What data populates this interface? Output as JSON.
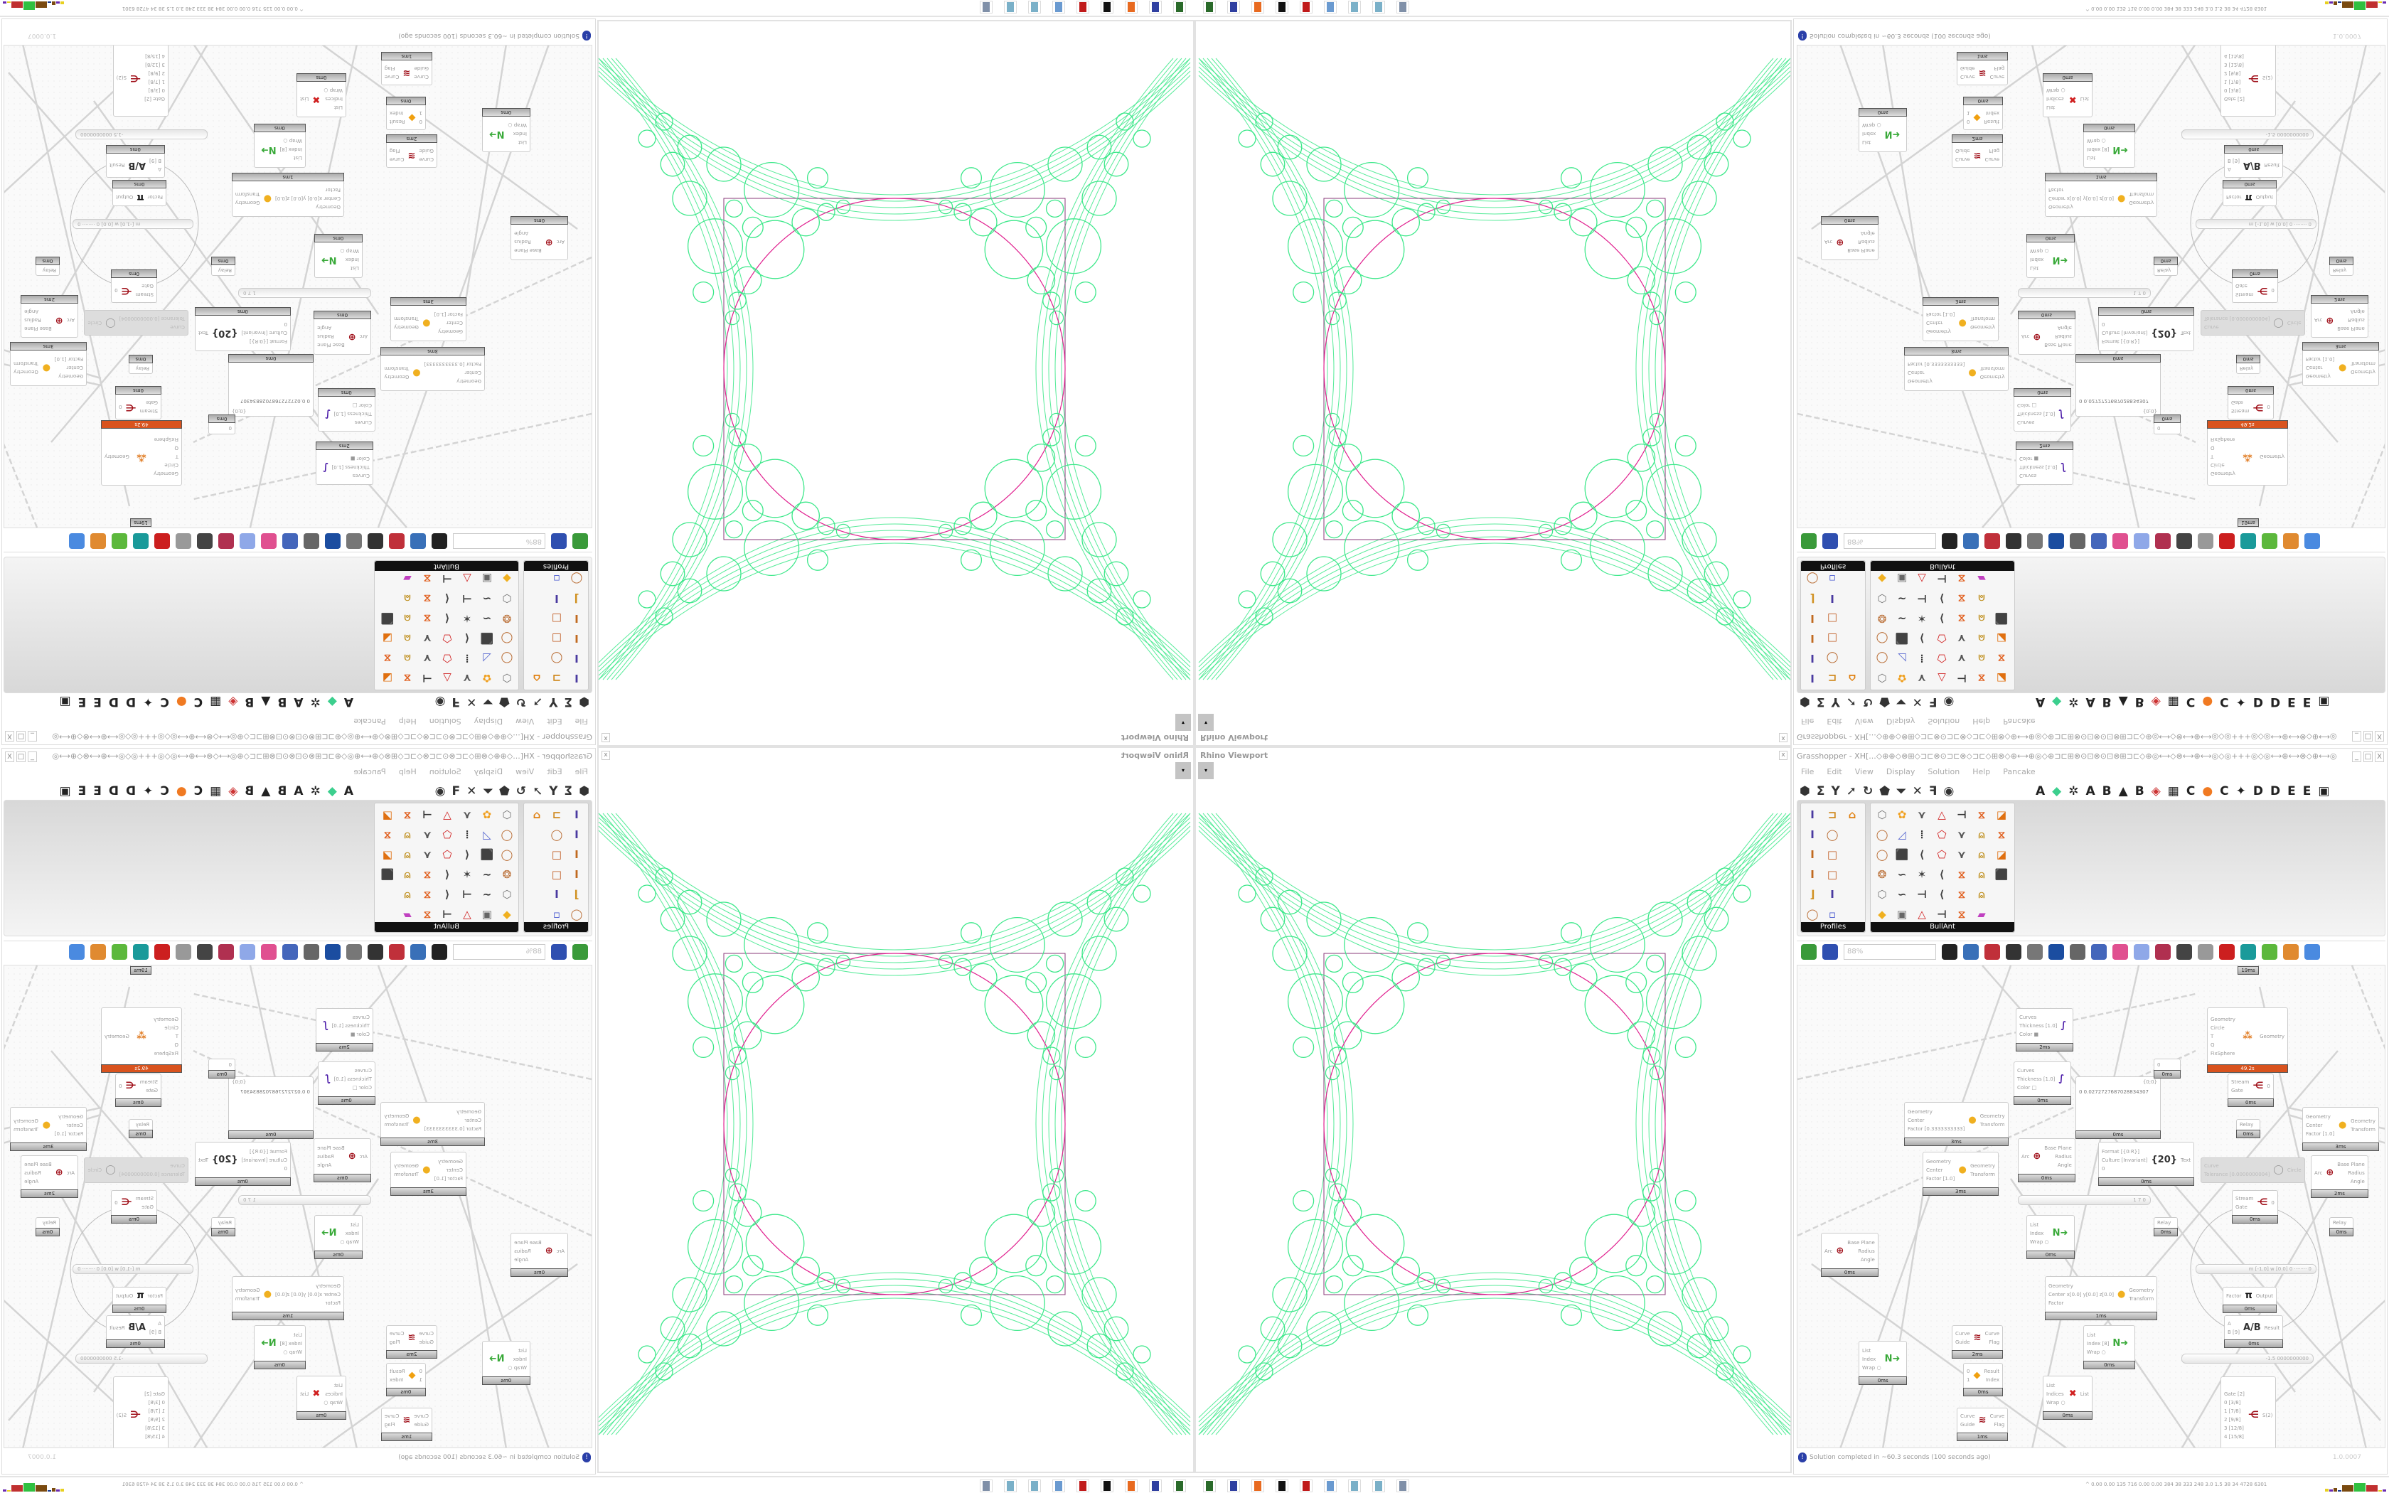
{
  "viewport": {
    "title": "Rhino Viewport",
    "close": "x",
    "dropdown": "▾",
    "curve_color": "#3de88a",
    "circle_color": "#e0208f"
  },
  "grasshopper": {
    "title": "Grasshopper - XH[...◇⊕⊕◇⊗⊞◇⊐⊏⊗⊙⊐⊏⊗◇⊐⊏◇⊞⊗◇⊕⟷⊕◎◇⊕⊐⊏⊞⊗⊙⊡⊗⊙⊡⊗⊞⊐⊏◇⊕◎⟷◇⊗⟷⊕⟷◎◇◎+++◎◇◎⟷⊕⟷⊗◇⊕⟷◎◇⊐⊏⊞⊗⊙⊡⊗...",
    "window_buttons": [
      "_",
      "□",
      "X"
    ],
    "menu": [
      "File",
      "Edit",
      "View",
      "Display",
      "Solution",
      "Help",
      "Pancake"
    ],
    "toolbar_left": [
      {
        "icon": "hexagon-icon",
        "glyph": "⬢"
      },
      {
        "icon": "sigma-icon",
        "glyph": "Σ"
      },
      {
        "icon": "y-branch-icon",
        "glyph": "Y"
      },
      {
        "icon": "arrow-icon",
        "glyph": "➚"
      },
      {
        "icon": "curl-icon",
        "glyph": "↻"
      },
      {
        "icon": "surface-icon",
        "glyph": "⬟"
      },
      {
        "icon": "funnel-icon",
        "glyph": "⏷"
      },
      {
        "icon": "cross-icon",
        "glyph": "✕"
      },
      {
        "icon": "hook-icon",
        "glyph": "ꟻ"
      },
      {
        "icon": "eye-icon",
        "glyph": "◉"
      }
    ],
    "toolbar_tabs": [
      {
        "label": "A"
      },
      {
        "label": "◆",
        "color": "#3ccf8e"
      },
      {
        "label": "✲"
      },
      {
        "label": "A"
      },
      {
        "label": "B"
      },
      {
        "label": "▲"
      },
      {
        "label": "B"
      },
      {
        "label": "◈",
        "color": "#c33"
      },
      {
        "label": "▦"
      },
      {
        "label": "C"
      },
      {
        "label": "●",
        "color": "#f07a22"
      },
      {
        "label": "C"
      },
      {
        "label": "✦"
      },
      {
        "label": "D"
      },
      {
        "label": "D"
      },
      {
        "label": "E"
      },
      {
        "label": "E"
      },
      {
        "label": "▣"
      }
    ],
    "panels": [
      {
        "name": "Profiles",
        "columns": 3,
        "icons": [
          "I-profile-icon",
          "channel-icon",
          "house-icon",
          "I-profile-icon",
          "ring-icon",
          "",
          "I-beam-icon",
          "square-tube-icon",
          "",
          "I-beam-icon",
          "square-tube-icon",
          "",
          "angle-icon",
          "I-profile-icon",
          "",
          "ring-icon",
          "points-icon",
          ""
        ]
      },
      {
        "name": "BullAnt",
        "columns": 7,
        "icons": [
          "box-icon",
          "flower-icon",
          "truss-icon",
          "triangle-icon",
          "bracket-icon",
          "frame-icon",
          "chart-icon",
          "ring-icon",
          "plane-icon",
          "columns-icon",
          "polygon-icon",
          "truss-icon",
          "lock-icon",
          "frame-icon",
          "ring-icon",
          "cube-icon",
          "polyline-icon",
          "polygon-icon",
          "truss-icon",
          "lock-icon",
          "chart-icon",
          "sphere-icon",
          "curve-icon",
          "star-icon",
          "polyline-icon",
          "frame-icon",
          "lock-icon",
          "cube-icon",
          "box-icon",
          "curve-icon",
          "bracket-icon",
          "polyline-icon",
          "frame-icon",
          "lock-icon",
          "",
          "diamond-icon",
          "panel-icon",
          "triangle-icon",
          "bracket-icon",
          "frame-icon",
          "rainbow-icon",
          ""
        ]
      }
    ],
    "zoom": "88%",
    "bottom_toolbar": [
      {
        "icon": "new-file-icon",
        "color": "#3a9a3a"
      },
      {
        "icon": "save-icon",
        "color": "#2f4fb0"
      },
      {
        "icon": "zoom-extents-icon",
        "color": "#222"
      },
      {
        "icon": "preview-eye-icon",
        "color": "#3970b8"
      },
      {
        "icon": "sketch-icon",
        "color": "#c0303a"
      },
      {
        "icon": "cylinder-icon",
        "color": "#333"
      },
      {
        "icon": "at-icon",
        "color": "#777"
      },
      {
        "icon": "gha-icon",
        "color": "#1b4da0"
      },
      {
        "icon": "screenshot-icon",
        "color": "#666"
      },
      {
        "icon": "search-s-icon",
        "color": "#4466bb"
      },
      {
        "icon": "package-icon",
        "color": "#e05090"
      },
      {
        "icon": "bulb-icon",
        "color": "#8fa8e8"
      },
      {
        "icon": "cross-wires-icon",
        "color": "#b03050"
      },
      {
        "icon": "sphere-mesh-icon",
        "color": "#444"
      },
      {
        "icon": "mesh-icon",
        "color": "#999"
      },
      {
        "icon": "red-box-icon",
        "color": "#cc1f1f"
      },
      {
        "icon": "teal-shape-icon",
        "color": "#1a9a9a"
      },
      {
        "icon": "green-shape-icon",
        "color": "#5cb83c"
      },
      {
        "icon": "sphere-half-icon",
        "color": "#e08a30"
      },
      {
        "icon": "blue-sphere-icon",
        "color": "#4a8ae0"
      }
    ],
    "nodes": [
      {
        "in": [
          "Curves",
          "Thickness [1.0]",
          "Color ■"
        ],
        "out": [],
        "time": "2ms",
        "icon": "∫",
        "ic": "#4a1aa8"
      },
      {
        "in": [
          "Curves",
          "Thickness [1.0]",
          "Color □"
        ],
        "out": [],
        "time": "0ms",
        "icon": "∫",
        "ic": "#4a1aa8"
      },
      {
        "panel": true,
        "header": "{0;0}",
        "text": "0  0.0272727687028834307",
        "time": "0ms"
      },
      {
        "in": [
          "0"
        ],
        "out": [],
        "time": "0ms"
      },
      {
        "in": [
          "Geometry",
          "Circle",
          "T",
          "Q",
          "FixSphere"
        ],
        "out": [
          "Geometry"
        ],
        "time": "49.2s",
        "hot": true,
        "icon": "⁂",
        "ic": "#e07a20"
      },
      {
        "in": [
          "Stream",
          "Gate"
        ],
        "out": [
          "0"
        ],
        "time": "0ms",
        "icon": "⋲",
        "ic": "#a0101a"
      },
      {
        "in": [
          "Relay"
        ],
        "out": [],
        "time": "0ms"
      },
      {
        "in": [
          "Geometry",
          "Center",
          "Factor [0.3333333333]"
        ],
        "out": [
          "Geometry",
          "Transform"
        ],
        "time": "3ms",
        "icon": "●",
        "ic": "#f0b020"
      },
      {
        "in": [
          "Geometry",
          "Center",
          "Factor [1.0]"
        ],
        "out": [
          "Geometry",
          "Transform"
        ],
        "time": "3ms",
        "icon": "●",
        "ic": "#f0b020"
      },
      {
        "in": [
          "Arc"
        ],
        "out": [
          "Base Plane",
          "Radius",
          "Angle"
        ],
        "time": "0ms",
        "icon": "⊕",
        "ic": "#a0101a"
      },
      {
        "in": [
          "Format [{0:R}]",
          "Culture [Invariant]",
          "0"
        ],
        "out": [
          "Text"
        ],
        "time": "0ms",
        "icon": "{20}",
        "ic": "#333"
      },
      {
        "in": [
          "Curve",
          "Tolerance [0.0000000004]"
        ],
        "out": [
          "Circle"
        ],
        "time": "",
        "disabled": true,
        "icon": "◯",
        "ic": "#999"
      },
      {
        "in": [
          "Geometry",
          "Center",
          "Factor [1.0]"
        ],
        "out": [
          "Geometry",
          "Transform"
        ],
        "time": "3ms",
        "icon": "●",
        "ic": "#f0b020"
      },
      {
        "in": [
          "Arc"
        ],
        "out": [
          "Base Plane",
          "Radius",
          "Angle"
        ],
        "time": "2ms",
        "icon": "⊕",
        "ic": "#a0101a"
      },
      {
        "in": [
          "Stream",
          "Gate"
        ],
        "out": [
          "0"
        ],
        "time": "0ms",
        "icon": "⋲",
        "ic": "#a0101a"
      },
      {
        "in": [],
        "out": [],
        "time": "19ms"
      },
      {
        "in": [
          "Arc"
        ],
        "out": [
          "Base Plane",
          "Radius",
          "Angle"
        ],
        "time": "0ms",
        "icon": "⊕",
        "ic": "#a0101a"
      },
      {
        "in": [
          "List",
          "Index",
          "Wrap ○"
        ],
        "out": [],
        "time": "0ms",
        "icon": "N➜",
        "ic": "#3aaa3a"
      },
      {
        "in": [
          "Geometry",
          "Center x[0.0] y[0.0] z[0.0]",
          "Factor"
        ],
        "out": [
          "Geometry",
          "Transform"
        ],
        "time": "1ms",
        "icon": "●",
        "ic": "#f0b020"
      },
      {
        "in": [
          "Factor"
        ],
        "out": [
          "Output"
        ],
        "time": "0ms",
        "icon": "π",
        "ic": "#111"
      },
      {
        "in": [
          "A",
          "B [9]"
        ],
        "out": [
          "Result"
        ],
        "time": "0ms",
        "icon": "A/B",
        "ic": "#333"
      },
      {
        "in": [
          "Curve",
          "Guide"
        ],
        "out": [
          "Curve",
          "Flag"
        ],
        "time": "2ms",
        "icon": "≋",
        "ic": "#a0101a"
      },
      {
        "in": [
          "List",
          "Index [8]",
          "Wrap ○"
        ],
        "out": [],
        "time": "0ms",
        "icon": "N➜",
        "ic": "#3aaa3a"
      },
      {
        "in": [
          "List",
          "Index",
          "Wrap ○"
        ],
        "out": [],
        "time": "0ms",
        "icon": "N➜",
        "ic": "#3aaa3a"
      },
      {
        "in": [
          "0",
          "1"
        ],
        "out": [
          "Result",
          "Index"
        ],
        "time": "0ms",
        "icon": "◆",
        "ic": "#f0a010"
      },
      {
        "in": [
          "List",
          "Indices",
          "Wrap ○"
        ],
        "out": [
          "List"
        ],
        "time": "0ms",
        "icon": "✖",
        "ic": "#d02020"
      },
      {
        "in": [
          "Gate [2]",
          "0 [3/8]",
          "1 [7/8]",
          "2 [9/8]",
          "3 [12/8]",
          "4 [15/8]"
        ],
        "out": [
          "S(2)"
        ],
        "time": "",
        "icon": "⋲",
        "ic": "#a0101a"
      },
      {
        "in": [
          "Curve",
          "Guide"
        ],
        "out": [
          "Curve",
          "Flag"
        ],
        "time": "1ms",
        "icon": "≋",
        "ic": "#a0101a"
      },
      {
        "in": [
          "Relay"
        ],
        "out": [],
        "time": "0ms"
      },
      {
        "in": [
          "Relay"
        ],
        "out": [],
        "time": "0ms"
      }
    ],
    "sliders": [
      "1 7 0",
      "-1.5 0000000000",
      "m [-1.0] w [0.0] 0 ········ 0"
    ],
    "status": "Solution completed in ~60.3 seconds (100 seconds ago)",
    "version": "1.0.0007"
  },
  "taskbar": {
    "apps": [
      {
        "icon": "rhino-launcher-icon",
        "color": "#2a6a2a"
      },
      {
        "icon": "floppy-64-icon",
        "color": "#2f3fa0"
      },
      {
        "icon": "firefox-icon",
        "color": "#e86a20"
      },
      {
        "icon": "inkscape-icon",
        "color": "#111"
      },
      {
        "icon": "red-app-icon",
        "color": "#c01a1a"
      },
      {
        "icon": "calculator-icon",
        "color": "#6a9ad0"
      },
      {
        "icon": "notepad-icon",
        "color": "#7ab0c8"
      },
      {
        "icon": "notepad-icon",
        "color": "#7ab0c8"
      },
      {
        "icon": "printer-icon",
        "color": "#8090a8"
      }
    ],
    "stats": "^  0.00 0.00 135 716 0.00 0.00 384  38  333  248  3.0  1.5  38  34  4728 6301",
    "meter_colors": [
      "#e8d020",
      "#6a2ab0",
      "#7a4a10",
      "#1a3a90",
      "#7a4a10",
      "#30c040",
      "#c03030"
    ]
  }
}
